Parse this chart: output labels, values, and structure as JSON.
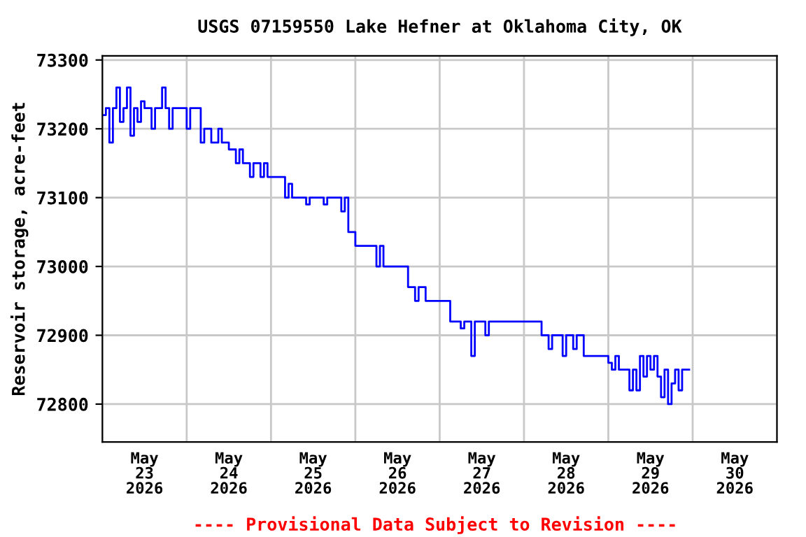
{
  "chart_data": {
    "type": "step",
    "title": "USGS 07159550 Lake Hefner at Oklahoma City, OK",
    "ylabel": "Reservoir storage, acre-feet",
    "annotations": [
      "---- Provisional Data Subject to Revision ----"
    ],
    "xlim": [
      "2026-05-23T00:00",
      "2026-05-31T00:00"
    ],
    "xticks": [
      {
        "value": "2026-05-23T00:00",
        "label": null
      },
      {
        "value": "2026-05-24T00:00",
        "label": null
      },
      {
        "value": "2026-05-25T00:00",
        "label": null
      },
      {
        "value": "2026-05-26T00:00",
        "label": null
      },
      {
        "value": "2026-05-27T00:00",
        "label": null
      },
      {
        "value": "2026-05-28T00:00",
        "label": null
      },
      {
        "value": "2026-05-29T00:00",
        "label": null
      },
      {
        "value": "2026-05-30T00:00",
        "label": null
      },
      {
        "value": "2026-05-31T00:00",
        "label": null
      },
      {
        "value": "2026-05-23T12:00",
        "label": "May\n23\n2026"
      },
      {
        "value": "2026-05-24T12:00",
        "label": "May\n24\n2026"
      },
      {
        "value": "2026-05-25T12:00",
        "label": "May\n25\n2026"
      },
      {
        "value": "2026-05-26T12:00",
        "label": "May\n26\n2026"
      },
      {
        "value": "2026-05-27T12:00",
        "label": "May\n27\n2026"
      },
      {
        "value": "2026-05-28T12:00",
        "label": "May\n28\n2026"
      },
      {
        "value": "2026-05-29T12:00",
        "label": "May\n29\n2026"
      },
      {
        "value": "2026-05-30T12:00",
        "label": "May\n30\n2026"
      }
    ],
    "ylim": [
      72745,
      73306
    ],
    "yticks": [
      72800,
      72900,
      73000,
      73100,
      73200,
      73300
    ],
    "grid": true,
    "series": [
      {
        "color": "#0000ff",
        "x": [
          "2026-05-23T00:00",
          "2026-05-23T01:00",
          "2026-05-23T02:00",
          "2026-05-23T03:00",
          "2026-05-23T04:00",
          "2026-05-23T05:00",
          "2026-05-23T06:00",
          "2026-05-23T07:00",
          "2026-05-23T08:00",
          "2026-05-23T09:00",
          "2026-05-23T10:00",
          "2026-05-23T11:00",
          "2026-05-23T12:00",
          "2026-05-23T14:00",
          "2026-05-23T15:00",
          "2026-05-23T17:00",
          "2026-05-23T18:00",
          "2026-05-23T19:00",
          "2026-05-23T20:00",
          "2026-05-24T00:00",
          "2026-05-24T01:00",
          "2026-05-24T04:00",
          "2026-05-24T05:00",
          "2026-05-24T07:00",
          "2026-05-24T09:00",
          "2026-05-24T10:00",
          "2026-05-24T12:00",
          "2026-05-24T14:00",
          "2026-05-24T15:00",
          "2026-05-24T16:00",
          "2026-05-24T18:00",
          "2026-05-24T19:00",
          "2026-05-24T21:00",
          "2026-05-24T22:00",
          "2026-05-24T23:00",
          "2026-05-25T04:00",
          "2026-05-25T05:00",
          "2026-05-25T06:00",
          "2026-05-25T10:00",
          "2026-05-25T11:00",
          "2026-05-25T14:00",
          "2026-05-25T15:00",
          "2026-05-25T16:00",
          "2026-05-25T20:00",
          "2026-05-25T21:00",
          "2026-05-25T22:00",
          "2026-05-26T00:00",
          "2026-05-26T06:00",
          "2026-05-26T07:00",
          "2026-05-26T08:00",
          "2026-05-26T15:00",
          "2026-05-26T17:00",
          "2026-05-26T18:00",
          "2026-05-26T20:00",
          "2026-05-27T03:00",
          "2026-05-27T06:00",
          "2026-05-27T07:00",
          "2026-05-27T09:00",
          "2026-05-27T10:00",
          "2026-05-27T13:00",
          "2026-05-27T14:00",
          "2026-05-28T05:00",
          "2026-05-28T07:00",
          "2026-05-28T08:00",
          "2026-05-28T11:00",
          "2026-05-28T12:00",
          "2026-05-28T14:00",
          "2026-05-28T15:00",
          "2026-05-28T17:00",
          "2026-05-29T00:00",
          "2026-05-29T01:00",
          "2026-05-29T02:00",
          "2026-05-29T03:00",
          "2026-05-29T06:00",
          "2026-05-29T07:00",
          "2026-05-29T08:00",
          "2026-05-29T09:00",
          "2026-05-29T10:00",
          "2026-05-29T11:00",
          "2026-05-29T12:00",
          "2026-05-29T13:00",
          "2026-05-29T14:00",
          "2026-05-29T15:00",
          "2026-05-29T16:00",
          "2026-05-29T17:00",
          "2026-05-29T18:00",
          "2026-05-29T19:00",
          "2026-05-29T20:00",
          "2026-05-29T21:00",
          "2026-05-29T23:00"
        ],
        "values": [
          73220,
          73230,
          73180,
          73230,
          73260,
          73210,
          73230,
          73260,
          73190,
          73230,
          73210,
          73240,
          73230,
          73200,
          73230,
          73260,
          73230,
          73200,
          73230,
          73200,
          73230,
          73180,
          73200,
          73180,
          73200,
          73180,
          73170,
          73150,
          73170,
          73150,
          73130,
          73150,
          73130,
          73150,
          73130,
          73100,
          73120,
          73100,
          73090,
          73100,
          73100,
          73090,
          73100,
          73080,
          73100,
          73050,
          73030,
          73000,
          73030,
          73000,
          72970,
          72950,
          72970,
          72950,
          72920,
          72910,
          72920,
          72870,
          72920,
          72900,
          72920,
          72900,
          72880,
          72900,
          72870,
          72900,
          72880,
          72900,
          72870,
          72860,
          72850,
          72870,
          72850,
          72820,
          72850,
          72820,
          72870,
          72840,
          72870,
          72850,
          72870,
          72840,
          72810,
          72850,
          72800,
          72830,
          72850,
          72820,
          72850,
          72850
        ]
      }
    ]
  }
}
